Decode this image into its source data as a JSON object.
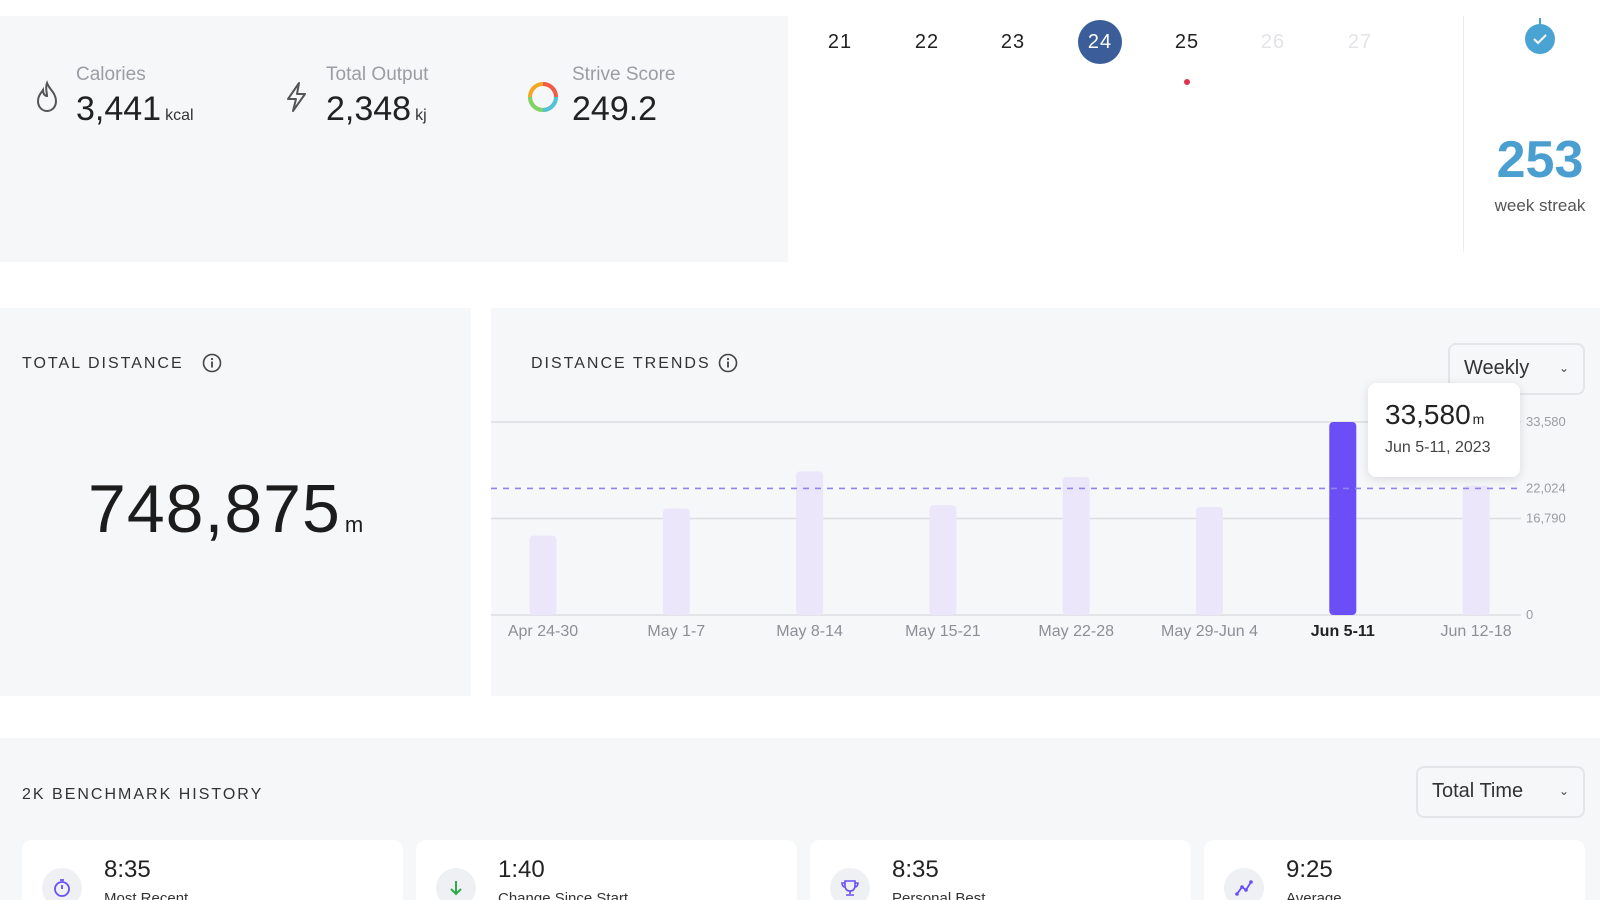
{
  "stats": {
    "calories": {
      "label": "Calories",
      "value": "3,441",
      "unit": "kcal"
    },
    "output": {
      "label": "Total Output",
      "value": "2,348",
      "unit": "kj"
    },
    "strive": {
      "label": "Strive Score",
      "value": "249.2"
    }
  },
  "calendar": {
    "days": [
      "21",
      "22",
      "23",
      "24",
      "25",
      "26",
      "27"
    ],
    "today": "24",
    "marked_day": "25"
  },
  "streak": {
    "value": "253",
    "label": "week streak"
  },
  "total_distance": {
    "title": "TOTAL DISTANCE",
    "value": "748,875",
    "unit": "m"
  },
  "trends": {
    "title": "DISTANCE TRENDS",
    "period": "Weekly",
    "tooltip": {
      "value": "33,580",
      "unit": "m",
      "date": "Jun 5-11, 2023"
    }
  },
  "benchmark": {
    "title": "2K BENCHMARK HISTORY",
    "metric": "Total Time",
    "cards": [
      {
        "value": "8:35",
        "label": "Most Recent",
        "icon": "stopwatch-icon"
      },
      {
        "value": "1:40",
        "label": "Change Since Start",
        "icon": "arrow-down-icon"
      },
      {
        "value": "8:35",
        "label": "Personal Best",
        "icon": "trophy-icon"
      },
      {
        "value": "9:25",
        "label": "Average",
        "icon": "trend-icon"
      }
    ]
  },
  "colors": {
    "accent": "#6b4ef6",
    "bar_muted": "#ece6fb",
    "streak": "#4a9fd0",
    "today": "#3b5d9a"
  },
  "chart_data": {
    "type": "bar",
    "categories": [
      "Apr 24-30",
      "May 1-7",
      "May 8-14",
      "May 15-21",
      "May 22-28",
      "May 29-Jun 4",
      "Jun 5-11",
      "Jun 12-18"
    ],
    "values": [
      13800,
      18500,
      25000,
      19100,
      24000,
      18800,
      33580,
      22500
    ],
    "highlighted": "Jun 5-11",
    "average": 22024,
    "ticks": [
      0,
      16790,
      22024,
      33580
    ],
    "tick_labels": [
      "0",
      "16,790",
      "22,024",
      "33,580"
    ],
    "ylim": [
      0,
      33580
    ]
  }
}
